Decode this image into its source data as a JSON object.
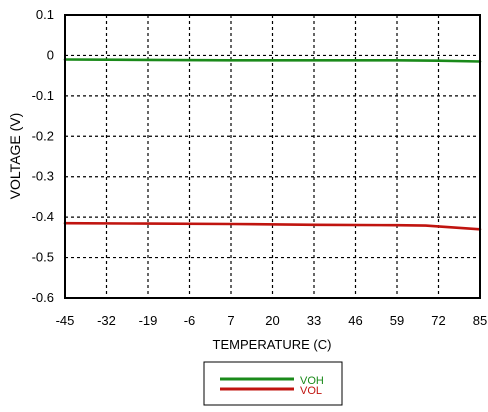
{
  "chart_data": {
    "type": "line",
    "xlabel": "TEMPERATURE (C)",
    "ylabel": "VOLTAGE (V)",
    "xlim": [
      -45,
      85
    ],
    "ylim": [
      -0.6,
      0.1
    ],
    "x_ticks": [
      "-45",
      "-32",
      "-19",
      "-6",
      "7",
      "20",
      "33",
      "46",
      "59",
      "72",
      "85"
    ],
    "y_ticks": [
      "0.1",
      "0",
      "-0.1",
      "-0.2",
      "-0.3",
      "-0.4",
      "-0.5",
      "-0.6"
    ],
    "grid": true,
    "legend_position": "bottom-center",
    "series": [
      {
        "name": "VOH",
        "color": "#1a8a1a",
        "points": [
          [
            -45,
            -0.01
          ],
          [
            -19,
            -0.011
          ],
          [
            7,
            -0.012
          ],
          [
            33,
            -0.012
          ],
          [
            59,
            -0.012
          ],
          [
            72,
            -0.013
          ],
          [
            85,
            -0.015
          ]
        ]
      },
      {
        "name": "VOL",
        "color": "#c0140f",
        "points": [
          [
            -45,
            -0.415
          ],
          [
            -19,
            -0.416
          ],
          [
            7,
            -0.417
          ],
          [
            33,
            -0.419
          ],
          [
            59,
            -0.42
          ],
          [
            68,
            -0.421
          ],
          [
            85,
            -0.43
          ]
        ]
      }
    ]
  }
}
